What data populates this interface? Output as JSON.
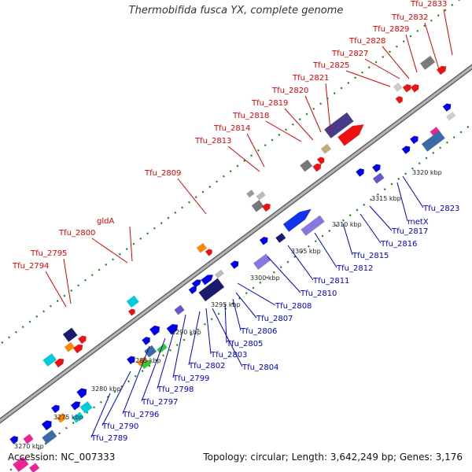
{
  "title": "Thermobifida fusca YX, complete genome",
  "footer": {
    "accession": "Accession: NC_007333",
    "stats": "Topology: circular; Length: 3,642,249 bp; Genes: 3,176"
  },
  "colors": {
    "forward_label": "#dd0000",
    "reverse_label": "#0000cc",
    "backbone": "#888888",
    "scale_dots": "#118811"
  },
  "scale_ticks": [
    "3270 kbp",
    "3275 kbp",
    "3280 kbp",
    "3285 kbp",
    "3290 kbp",
    "3295 kbp",
    "3300 kbp",
    "3305 kbp",
    "3310 kbp",
    "3315 kbp",
    "3320 kbp"
  ],
  "labels_forward": [
    "Tfu_2833",
    "Tfu_2832",
    "Tfu_2829",
    "Tfu_2828",
    "Tfu_2827",
    "Tfu_2825",
    "Tfu_2821",
    "Tfu_2820",
    "Tfu_2819",
    "Tfu_2818",
    "Tfu_2814",
    "Tfu_2813",
    "Tfu_2809",
    "gldA",
    "Tfu_2800",
    "Tfu_2795",
    "Tfu_2794"
  ],
  "labels_reverse": [
    "Tfu_2823",
    "metX",
    "Tfu_2817",
    "Tfu_2816",
    "Tfu_2815",
    "Tfu_2812",
    "Tfu_2811",
    "Tfu_2810",
    "Tfu_2808",
    "Tfu_2807",
    "Tfu_2806",
    "Tfu_2805",
    "Tfu_2804",
    "Tfu_2803",
    "Tfu_2802",
    "Tfu_2799",
    "Tfu_2798",
    "Tfu_2797",
    "Tfu_2796",
    "Tfu_2790",
    "Tfu_2789"
  ]
}
